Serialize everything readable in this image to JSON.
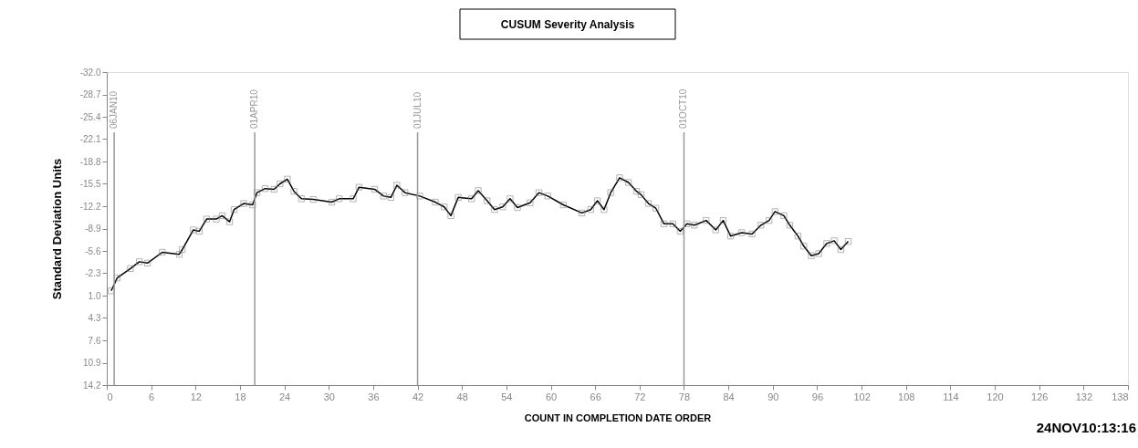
{
  "chart_data": {
    "type": "line",
    "title": "CUSUM Severity Analysis",
    "xlabel": "COUNT IN COMPLETION DATE ORDER",
    "ylabel": "Standard Deviation Units",
    "annotations": [
      "24NOV10:13:16"
    ],
    "x": [
      0.6,
      1.4,
      3.2,
      4.4,
      5.5,
      7.5,
      9.8,
      10.2,
      11.7,
      12.5,
      13.5,
      14.8,
      15.6,
      16.6,
      17.2,
      18.5,
      19.7,
      20.3,
      21.4,
      22.6,
      23.4,
      24.4,
      25.3,
      26.3,
      27.9,
      30.4,
      31.4,
      33.3,
      34.1,
      36.2,
      37.4,
      38.4,
      39.2,
      40.3,
      42.3,
      44.4,
      45.6,
      46.5,
      47.5,
      49.3,
      50.2,
      51.4,
      52.4,
      53.5,
      54.5,
      55.5,
      57.2,
      58.4,
      59.6,
      61.7,
      64.2,
      65.4,
      66.3,
      67.2,
      68.1,
      69.3,
      70.5,
      71.6,
      72.2,
      73.2,
      74.2,
      75.3,
      76.5,
      77.5,
      78.4,
      79.4,
      81.0,
      82.3,
      83.3,
      84.3,
      85.8,
      87.2,
      88.4,
      89.5,
      90.3,
      91.5,
      92.3,
      93.4,
      94.2,
      95.2,
      96.2,
      97.3,
      98.3,
      99.2,
      100.2
    ],
    "series": [
      {
        "color": "#000000",
        "values": [
          0.3,
          -1.6,
          -3.0,
          -4.0,
          -3.8,
          -5.4,
          -5.1,
          -5.8,
          -8.7,
          -8.5,
          -10.3,
          -10.3,
          -10.8,
          -9.9,
          -11.7,
          -12.6,
          -12.4,
          -14.2,
          -14.8,
          -14.7,
          -15.5,
          -16.2,
          -14.4,
          -13.3,
          -13.2,
          -12.8,
          -13.3,
          -13.3,
          -15.0,
          -14.7,
          -13.7,
          -13.5,
          -15.3,
          -14.2,
          -13.7,
          -12.8,
          -12.1,
          -10.8,
          -13.5,
          -13.3,
          -14.5,
          -13.0,
          -11.7,
          -12.1,
          -13.3,
          -12.0,
          -12.7,
          -14.2,
          -13.7,
          -12.4,
          -11.2,
          -11.7,
          -13.0,
          -11.7,
          -14.2,
          -16.4,
          -15.7,
          -14.4,
          -13.9,
          -12.6,
          -11.9,
          -9.6,
          -9.6,
          -8.5,
          -9.6,
          -9.4,
          -10.1,
          -8.7,
          -10.1,
          -7.8,
          -8.3,
          -8.1,
          -9.4,
          -10.1,
          -11.4,
          -10.8,
          -9.4,
          -7.8,
          -6.3,
          -4.9,
          -5.2,
          -6.7,
          -7.1,
          -5.8,
          -7.0
        ]
      }
    ],
    "xlim": [
      0,
      138
    ],
    "xticks": [
      0,
      6,
      12,
      18,
      24,
      30,
      36,
      42,
      48,
      54,
      60,
      66,
      72,
      78,
      84,
      90,
      96,
      102,
      108,
      114,
      120,
      126,
      132,
      138
    ],
    "ylim": [
      14.2,
      -32.0
    ],
    "yticks": [
      {
        "value": -32,
        "label": "-32.0"
      },
      -28.7,
      -25.4,
      -22.1,
      -18.8,
      -15.5,
      -12.2,
      -8.9,
      -5.6,
      -2.3,
      {
        "value": 1,
        "label": "1.0"
      },
      4.3,
      7.6,
      10.9,
      14.2
    ],
    "ref_lines": [
      {
        "axis": "x",
        "value": 1,
        "label": "06JAN10",
        "color": "#999999"
      },
      {
        "axis": "x",
        "value": 20,
        "label": "01APR10",
        "color": "#999999"
      },
      {
        "axis": "x",
        "value": 42,
        "label": "01JUL10",
        "color": "#999999"
      },
      {
        "axis": "x",
        "value": 78,
        "label": "01OCT10",
        "color": "#999999"
      }
    ],
    "marker": "square",
    "line_style": "solid",
    "grid": false
  }
}
